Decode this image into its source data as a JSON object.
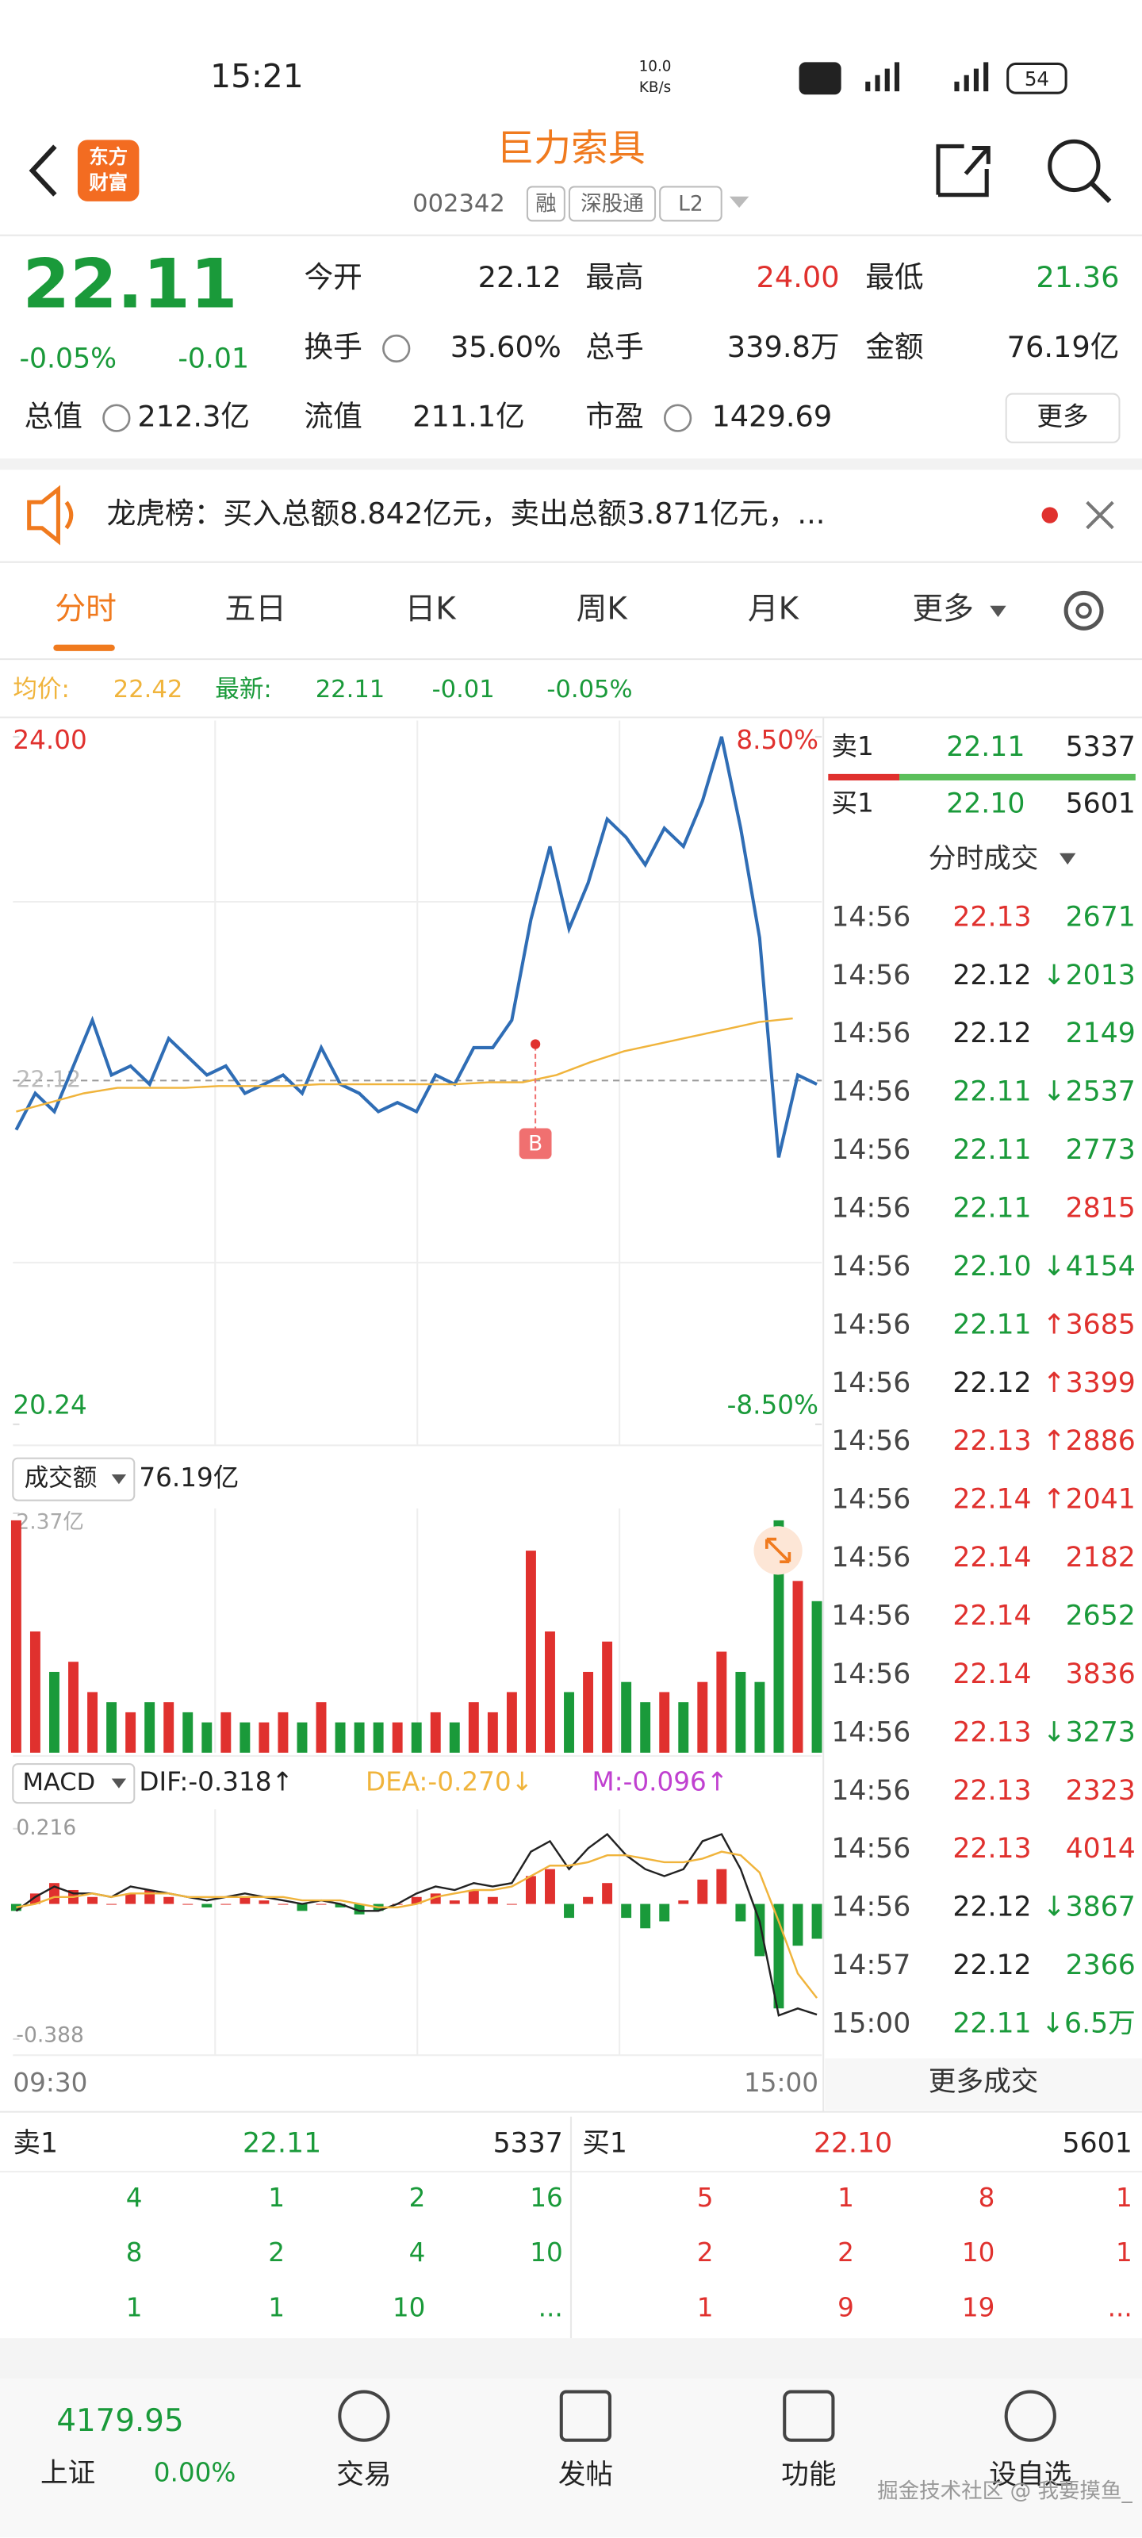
{
  "status": {
    "time": "15:21",
    "speed": "10.0",
    "speed_unit": "KB/s",
    "battery": "54"
  },
  "header": {
    "logo": [
      "东方",
      "财富"
    ],
    "title": "巨力索具",
    "code": "002342",
    "tags": [
      "融",
      "深股通",
      "L2"
    ]
  },
  "quote": {
    "price": "22.11",
    "change_pct": "-0.05%",
    "change": "-0.01",
    "fields": [
      {
        "label": "今开",
        "value": "22.12",
        "color": "#222222"
      },
      {
        "label": "最高",
        "value": "24.00",
        "color": "#e0312e"
      },
      {
        "label": "最低",
        "value": "21.36",
        "color": "#1a9a3a"
      },
      {
        "label": "换手",
        "value": "35.60%",
        "color": "#222222"
      },
      {
        "label": "总手",
        "value": "339.8万",
        "color": "#222222"
      },
      {
        "label": "金额",
        "value": "76.19亿",
        "color": "#222222"
      },
      {
        "label": "总值",
        "value": "212.3亿",
        "color": "#222222"
      },
      {
        "label": "流值",
        "value": "211.1亿",
        "color": "#222222"
      },
      {
        "label": "市盈",
        "value": "1429.69",
        "color": "#222222"
      }
    ],
    "more": "更多"
  },
  "notice": "龙虎榜：买入总额8.842亿元，卖出总额3.871亿元，...",
  "tabs": [
    "分时",
    "五日",
    "日K",
    "周K",
    "月K",
    "更多"
  ],
  "info": {
    "avg_label": "均价:",
    "avg": "22.42",
    "latest_label": "最新:",
    "latest": "22.11",
    "change": "-0.01",
    "change_pct": "-0.05%"
  },
  "chart_data": [
    {
      "type": "line",
      "ylim": [
        20.24,
        24.0
      ],
      "yticks": [
        {
          "value": 24.0,
          "label": "24.00"
        },
        {
          "value": 20.24,
          "label": "20.24"
        }
      ],
      "y2lim": [
        -8.5,
        8.5
      ],
      "y2ticks": [
        {
          "value": 8.5,
          "label": "8.50%"
        },
        {
          "value": -8.5,
          "label": "-8.50%"
        }
      ],
      "reference": {
        "value": 22.12,
        "label": "22.12"
      },
      "marker": "B",
      "series": [
        {
          "name": "最新",
          "color": "#2f6db5",
          "values": [
            21.85,
            22.05,
            21.95,
            22.2,
            22.45,
            22.15,
            22.2,
            22.1,
            22.35,
            22.25,
            22.15,
            22.2,
            22.05,
            22.1,
            22.15,
            22.05,
            22.3,
            22.1,
            22.05,
            21.95,
            22.0,
            21.95,
            22.15,
            22.1,
            22.3,
            22.3,
            22.45,
            23.0,
            23.4,
            22.95,
            23.2,
            23.55,
            23.45,
            23.3,
            23.5,
            23.4,
            23.65,
            24.0,
            23.5,
            22.9,
            21.7,
            22.15,
            22.1
          ]
        },
        {
          "name": "均价",
          "color": "#f0b43c",
          "values": [
            21.95,
            22.0,
            22.05,
            22.08,
            22.08,
            22.08,
            22.09,
            22.09,
            22.09,
            22.1,
            22.1,
            22.1,
            22.1,
            22.1,
            22.11,
            22.11,
            22.15,
            22.22,
            22.28,
            22.32,
            22.36,
            22.4,
            22.44,
            22.46
          ]
        }
      ]
    },
    {
      "type": "bar",
      "title": "成交额",
      "total": "76.19亿",
      "ylim": [
        0,
        2.37
      ],
      "yticks": [
        {
          "value": 2.37,
          "label": "2.37亿"
        }
      ],
      "up_color": "#e0312e",
      "down_color": "#1a9a3a",
      "values": [
        2.3,
        1.2,
        0.8,
        0.9,
        0.6,
        0.5,
        0.4,
        0.5,
        0.5,
        0.4,
        0.3,
        0.4,
        0.3,
        0.3,
        0.4,
        0.3,
        0.5,
        0.3,
        0.3,
        0.3,
        0.3,
        0.3,
        0.4,
        0.3,
        0.5,
        0.4,
        0.6,
        2.0,
        1.2,
        0.6,
        0.8,
        1.1,
        0.7,
        0.5,
        0.6,
        0.5,
        0.7,
        1.0,
        0.8,
        0.7,
        2.3,
        1.7,
        1.5
      ]
    },
    {
      "type": "macd",
      "title": "MACD",
      "dif_label": "DIF:-0.318↑",
      "dea_label": "DEA:-0.270↓",
      "m_label": "M:-0.096↑",
      "ylim": [
        -0.388,
        0.216
      ],
      "yticks": [
        {
          "value": 0.216,
          "label": "0.216"
        },
        {
          "value": -0.388,
          "label": "-0.388"
        }
      ],
      "x_labels": [
        "09:30",
        "15:00"
      ],
      "up_color": "#e0312e",
      "down_color": "#1a9a3a",
      "dif_color": "#222222",
      "dea_color": "#f0b43c",
      "hist": [
        -0.02,
        0.03,
        0.06,
        0.04,
        0.02,
        0.0,
        0.03,
        0.04,
        0.02,
        0.0,
        -0.01,
        0.0,
        0.02,
        0.01,
        0.0,
        -0.02,
        0.0,
        -0.01,
        -0.03,
        -0.02,
        0.0,
        0.02,
        0.03,
        0.01,
        0.04,
        0.02,
        0.0,
        0.08,
        0.1,
        -0.04,
        0.02,
        0.06,
        -0.04,
        -0.07,
        -0.05,
        0.01,
        0.07,
        0.1,
        -0.05,
        -0.15,
        -0.3,
        -0.12,
        -0.1
      ],
      "dif": [
        -0.02,
        0.02,
        0.05,
        0.03,
        0.03,
        0.02,
        0.05,
        0.04,
        0.03,
        0.02,
        0.01,
        0.02,
        0.03,
        0.02,
        0.01,
        0.0,
        0.01,
        0.0,
        -0.02,
        -0.02,
        0.0,
        0.03,
        0.05,
        0.04,
        0.06,
        0.05,
        0.06,
        0.15,
        0.18,
        0.1,
        0.16,
        0.2,
        0.14,
        0.1,
        0.08,
        0.1,
        0.18,
        0.2,
        0.1,
        -0.05,
        -0.32,
        -0.3,
        -0.318
      ],
      "dea": [
        -0.01,
        0.0,
        0.02,
        0.02,
        0.03,
        0.02,
        0.03,
        0.03,
        0.03,
        0.02,
        0.02,
        0.02,
        0.02,
        0.02,
        0.02,
        0.01,
        0.01,
        0.01,
        0.0,
        -0.01,
        -0.01,
        0.0,
        0.02,
        0.03,
        0.04,
        0.04,
        0.05,
        0.08,
        0.11,
        0.11,
        0.12,
        0.14,
        0.14,
        0.13,
        0.12,
        0.12,
        0.13,
        0.15,
        0.14,
        0.09,
        -0.05,
        -0.2,
        -0.27
      ]
    }
  ],
  "trades": {
    "sell1": {
      "label": "卖1",
      "price": "22.11",
      "volume": "5337"
    },
    "buy1": {
      "label": "买1",
      "price": "22.10",
      "volume": "5601"
    },
    "title": "分时成交",
    "rows": [
      {
        "time": "14:56",
        "price": "22.13",
        "price_color": "#e0312e",
        "arrow": "",
        "volume": "2671",
        "color": "#1a9a3a"
      },
      {
        "time": "14:56",
        "price": "22.12",
        "price_color": "#222222",
        "arrow": "↓",
        "volume": "2013",
        "color": "#1a9a3a"
      },
      {
        "time": "14:56",
        "price": "22.12",
        "price_color": "#222222",
        "arrow": "",
        "volume": "2149",
        "color": "#1a9a3a"
      },
      {
        "time": "14:56",
        "price": "22.11",
        "price_color": "#1a9a3a",
        "arrow": "↓",
        "volume": "2537",
        "color": "#1a9a3a"
      },
      {
        "time": "14:56",
        "price": "22.11",
        "price_color": "#1a9a3a",
        "arrow": "",
        "volume": "2773",
        "color": "#1a9a3a"
      },
      {
        "time": "14:56",
        "price": "22.11",
        "price_color": "#1a9a3a",
        "arrow": "",
        "volume": "2815",
        "color": "#e0312e"
      },
      {
        "time": "14:56",
        "price": "22.10",
        "price_color": "#1a9a3a",
        "arrow": "↓",
        "volume": "4154",
        "color": "#1a9a3a"
      },
      {
        "time": "14:56",
        "price": "22.11",
        "price_color": "#1a9a3a",
        "arrow": "↑",
        "volume": "3685",
        "color": "#e0312e"
      },
      {
        "time": "14:56",
        "price": "22.12",
        "price_color": "#222222",
        "arrow": "↑",
        "volume": "3399",
        "color": "#e0312e"
      },
      {
        "time": "14:56",
        "price": "22.13",
        "price_color": "#e0312e",
        "arrow": "↑",
        "volume": "2886",
        "color": "#e0312e"
      },
      {
        "time": "14:56",
        "price": "22.14",
        "price_color": "#e0312e",
        "arrow": "↑",
        "volume": "2041",
        "color": "#e0312e"
      },
      {
        "time": "14:56",
        "price": "22.14",
        "price_color": "#e0312e",
        "arrow": "",
        "volume": "2182",
        "color": "#e0312e"
      },
      {
        "time": "14:56",
        "price": "22.14",
        "price_color": "#e0312e",
        "arrow": "",
        "volume": "2652",
        "color": "#1a9a3a"
      },
      {
        "time": "14:56",
        "price": "22.14",
        "price_color": "#e0312e",
        "arrow": "",
        "volume": "3836",
        "color": "#e0312e"
      },
      {
        "time": "14:56",
        "price": "22.13",
        "price_color": "#e0312e",
        "arrow": "↓",
        "volume": "3273",
        "color": "#1a9a3a"
      },
      {
        "time": "14:56",
        "price": "22.13",
        "price_color": "#e0312e",
        "arrow": "",
        "volume": "2323",
        "color": "#e0312e"
      },
      {
        "time": "14:56",
        "price": "22.13",
        "price_color": "#e0312e",
        "arrow": "",
        "volume": "4014",
        "color": "#e0312e"
      },
      {
        "time": "14:56",
        "price": "22.12",
        "price_color": "#222222",
        "arrow": "↓",
        "volume": "3867",
        "color": "#1a9a3a"
      },
      {
        "time": "14:57",
        "price": "22.12",
        "price_color": "#222222",
        "arrow": "",
        "volume": "2366",
        "color": "#1a9a3a"
      },
      {
        "time": "15:00",
        "price": "22.11",
        "price_color": "#1a9a3a",
        "arrow": "↓",
        "volume": "6.5万",
        "color": "#1a9a3a"
      }
    ],
    "more": "更多成交"
  },
  "order_book": {
    "sell": {
      "label": "卖1",
      "price": "22.11",
      "volume": "5337",
      "rows": [
        [
          "4",
          "1",
          "2",
          "16"
        ],
        [
          "8",
          "2",
          "4",
          "10"
        ],
        [
          "1",
          "1",
          "10",
          "..."
        ]
      ]
    },
    "buy": {
      "label": "买1",
      "price": "22.10",
      "volume": "5601",
      "rows": [
        [
          "5",
          "1",
          "8",
          "1"
        ],
        [
          "2",
          "2",
          "10",
          "1"
        ],
        [
          "1",
          "9",
          "19",
          "..."
        ]
      ]
    }
  },
  "nav": {
    "index_value": "4179.95",
    "index_name": "上证",
    "index_change": "0.00%",
    "items": [
      "交易",
      "发帖",
      "功能",
      "设自选"
    ]
  },
  "watermark": "掘金技术社区 @ 我要摸鱼_"
}
